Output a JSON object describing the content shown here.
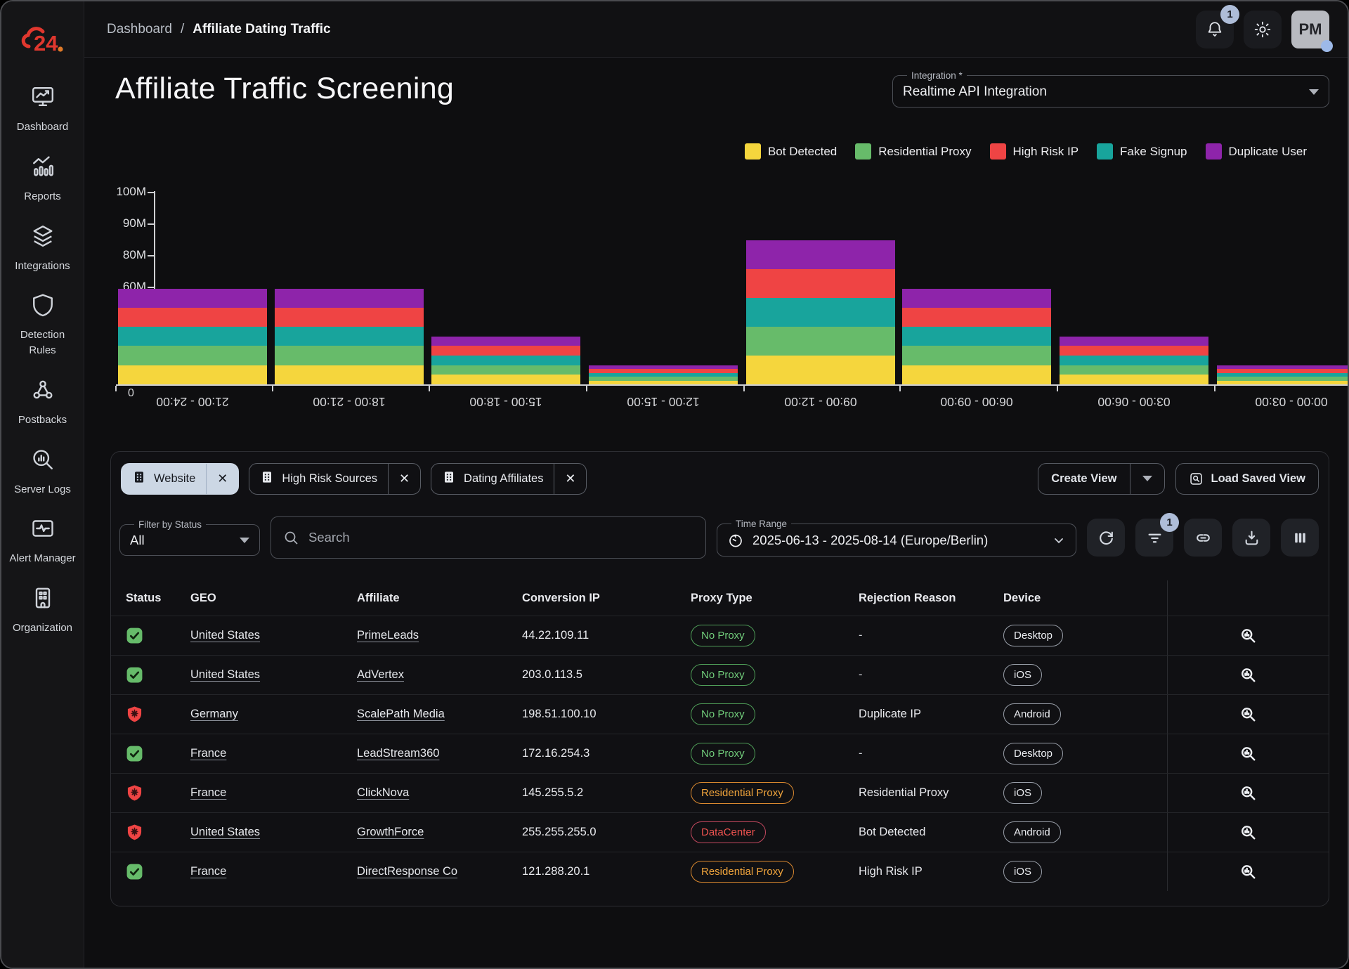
{
  "app": {
    "logo_text": "c24",
    "accent_color": "#e0372e"
  },
  "sidebar": {
    "items": [
      {
        "label": "Dashboard",
        "icon": "dashboard"
      },
      {
        "label": "Reports",
        "icon": "reports"
      },
      {
        "label": "Integrations",
        "icon": "integrations"
      },
      {
        "label": "Detection Rules",
        "icon": "detection-rules"
      },
      {
        "label": "Postbacks",
        "icon": "postbacks"
      },
      {
        "label": "Server Logs",
        "icon": "server-logs"
      },
      {
        "label": "Alert Manager",
        "icon": "alert-manager"
      },
      {
        "label": "Organization",
        "icon": "organization"
      }
    ]
  },
  "topbar": {
    "breadcrumb": [
      {
        "label": "Dashboard"
      },
      {
        "label": "Affiliate Dating Traffic"
      }
    ],
    "separator": "/",
    "notifications_badge": "1",
    "avatar_initials": "PM"
  },
  "header": {
    "title": "Affiliate Traffic Screening",
    "integration": {
      "label": "Integration *",
      "value": "Realtime API Integration"
    }
  },
  "chart_data": {
    "type": "bar",
    "stacked": true,
    "title": "",
    "xlabel": "",
    "ylabel": "",
    "ylim": [
      0,
      100000000
    ],
    "y_tick_labels": [
      "100M",
      "90M",
      "80M",
      "60M",
      "0"
    ],
    "x_labels_rotated_180": true,
    "categories": [
      "21:00 - 24:00",
      "18:00 - 21:00",
      "15:00 - 18:00",
      "12:00 - 15:00",
      "09:00 - 12:00",
      "06:00 - 09:00",
      "03:00 - 06:00",
      "00:00 - 03:00"
    ],
    "series": [
      {
        "name": "Bot Detected",
        "color": "#f5d63d",
        "values": [
          10,
          10,
          5,
          2,
          15,
          10,
          5,
          2
        ]
      },
      {
        "name": "Residential Proxy",
        "color": "#67bb6a",
        "values": [
          10,
          10,
          5,
          2,
          15,
          10,
          5,
          2
        ]
      },
      {
        "name": "Fake Signup",
        "color": "#18a49c",
        "values": [
          10,
          10,
          5,
          2,
          15,
          10,
          5,
          2
        ]
      },
      {
        "name": "High Risk IP",
        "color": "#ef4444",
        "values": [
          10,
          10,
          5,
          2,
          15,
          10,
          5,
          2
        ]
      },
      {
        "name": "Duplicate User",
        "color": "#8e24aa",
        "values": [
          10,
          10,
          5,
          2,
          15,
          10,
          5,
          2
        ]
      }
    ],
    "totals_millions": [
      50,
      50,
      25,
      10,
      75,
      50,
      25,
      10
    ],
    "legend": [
      {
        "label": "Bot Detected",
        "color": "#f5d63d"
      },
      {
        "label": "Residential Proxy",
        "color": "#67bb6a"
      },
      {
        "label": "High Risk IP",
        "color": "#ef4444"
      },
      {
        "label": "Fake Signup",
        "color": "#18a49c"
      },
      {
        "label": "Duplicate User",
        "color": "#8e24aa"
      }
    ],
    "legend_position": "top-right",
    "grid": false
  },
  "filters": {
    "chips": [
      {
        "label": "Website",
        "active": true
      },
      {
        "label": "High Risk Sources",
        "active": false
      },
      {
        "label": "Dating Affiliates",
        "active": false
      }
    ],
    "create_view_label": "Create View",
    "load_saved_view_label": "Load Saved View",
    "status_filter": {
      "label": "Filter by Status",
      "value": "All"
    },
    "search": {
      "placeholder": "Search"
    },
    "time_range": {
      "label": "Time Range",
      "value": "2025-06-13 - 2025-08-14 (Europe/Berlin)"
    },
    "filter_button_badge": "1"
  },
  "table": {
    "columns": [
      "Status",
      "GEO",
      "Affiliate",
      "Conversion IP",
      "Proxy Type",
      "Rejection Reason",
      "Device"
    ],
    "rows": [
      {
        "status": "ok",
        "geo": "United States",
        "affiliate": "PrimeLeads",
        "ip": "44.22.109.11",
        "proxy": "No Proxy",
        "proxy_color": "green",
        "rejection": "-",
        "device": "Desktop"
      },
      {
        "status": "ok",
        "geo": "United States",
        "affiliate": "AdVertex",
        "ip": "203.0.113.5",
        "proxy": "No Proxy",
        "proxy_color": "green",
        "rejection": "-",
        "device": "iOS"
      },
      {
        "status": "alert",
        "geo": "Germany",
        "affiliate": "ScalePath Media",
        "ip": "198.51.100.10",
        "proxy": "No Proxy",
        "proxy_color": "green",
        "rejection": "Duplicate IP",
        "device": "Android"
      },
      {
        "status": "ok",
        "geo": "France",
        "affiliate": "LeadStream360",
        "ip": "172.16.254.3",
        "proxy": "No Proxy",
        "proxy_color": "green",
        "rejection": "-",
        "device": "Desktop"
      },
      {
        "status": "alert",
        "geo": "France",
        "affiliate": "ClickNova",
        "ip": "145.255.5.2",
        "proxy": "Residential Proxy",
        "proxy_color": "orange",
        "rejection": "Residential Proxy",
        "device": "iOS"
      },
      {
        "status": "alert",
        "geo": "United States",
        "affiliate": "GrowthForce",
        "ip": "255.255.255.0",
        "proxy": "DataCenter",
        "proxy_color": "red",
        "rejection": "Bot Detected",
        "device": "Android"
      },
      {
        "status": "ok",
        "geo": "France",
        "affiliate": "DirectResponse Co",
        "ip": "121.288.20.1",
        "proxy": "Residential Proxy",
        "proxy_color": "orange",
        "rejection": "High Risk IP",
        "device": "iOS"
      }
    ],
    "status_colors": {
      "ok": "#66bb6a",
      "alert": "#ef4444"
    },
    "proxy_chip_colors": {
      "green": "#72cf7c",
      "orange": "#f0a43c",
      "red": "#ef5350"
    }
  }
}
